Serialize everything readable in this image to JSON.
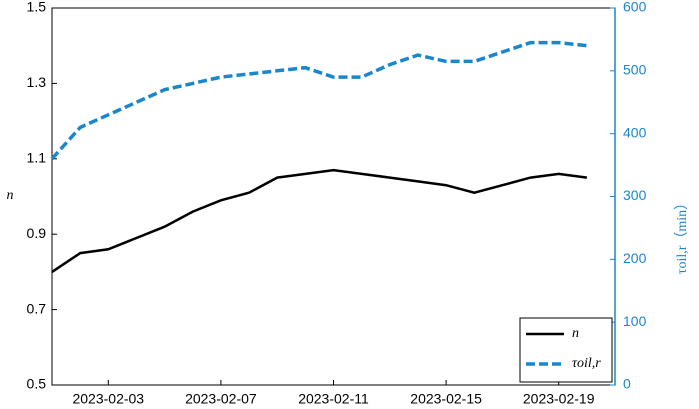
{
  "chart_data": {
    "type": "line",
    "ylabel": "n",
    "y2label": "τoil,r（min）",
    "x": [
      "2023-02-01",
      "2023-02-02",
      "2023-02-03",
      "2023-02-04",
      "2023-02-05",
      "2023-02-06",
      "2023-02-07",
      "2023-02-08",
      "2023-02-09",
      "2023-02-10",
      "2023-02-11",
      "2023-02-12",
      "2023-02-13",
      "2023-02-14",
      "2023-02-15",
      "2023-02-16",
      "2023-02-17",
      "2023-02-18",
      "2023-02-19",
      "2023-02-20"
    ],
    "series": [
      {
        "name": "n",
        "color": "#000000",
        "dash": false,
        "values": [
          0.8,
          0.85,
          0.86,
          0.89,
          0.92,
          0.96,
          0.99,
          1.01,
          1.05,
          1.06,
          1.07,
          1.06,
          1.05,
          1.04,
          1.03,
          1.01,
          1.03,
          1.05,
          1.06,
          1.05
        ]
      },
      {
        "name": "τoil,r",
        "color": "#1a86cc",
        "dash": true,
        "axis": "y2",
        "values": [
          360,
          410,
          430,
          450,
          470,
          480,
          490,
          495,
          500,
          505,
          490,
          490,
          510,
          525,
          515,
          515,
          530,
          545,
          545,
          540
        ]
      }
    ],
    "xlim": [
      "2023-02-01",
      "2023-02-21"
    ],
    "xticks": [
      "2023-02-03",
      "2023-02-07",
      "2023-02-11",
      "2023-02-15",
      "2023-02-19"
    ],
    "ylim": [
      0.5,
      1.5
    ],
    "yticks": [
      0.5,
      0.7,
      0.9,
      1.1,
      1.3,
      1.5
    ],
    "y2lim": [
      0,
      600
    ],
    "y2ticks": [
      0,
      100,
      200,
      300,
      400,
      500,
      600
    ],
    "y2color": "#1a86cc",
    "legend": "lower-right"
  }
}
